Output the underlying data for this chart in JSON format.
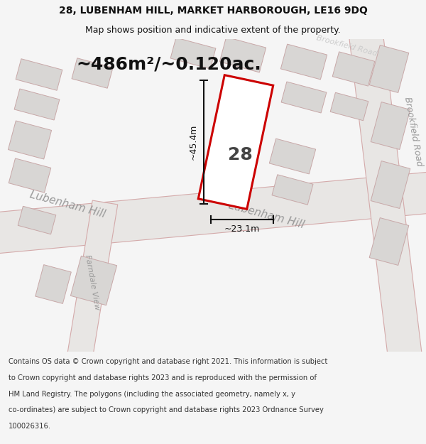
{
  "title_line1": "28, LUBENHAM HILL, MARKET HARBOROUGH, LE16 9DQ",
  "title_line2": "Map shows position and indicative extent of the property.",
  "area_text": "~486m²/~0.120ac.",
  "dim_vertical": "~45.4m",
  "dim_horizontal": "~23.1m",
  "property_number": "28",
  "footer_lines": [
    "Contains OS data © Crown copyright and database right 2021. This information is subject",
    "to Crown copyright and database rights 2023 and is reproduced with the permission of",
    "HM Land Registry. The polygons (including the associated geometry, namely x, y",
    "co-ordinates) are subject to Crown copyright and database rights 2023 Ordnance Survey",
    "100026316."
  ],
  "bg_color": "#f5f5f5",
  "map_bg": "#f0efee",
  "road_fill": "#e8e6e4",
  "road_stroke": "#d4aaaa",
  "property_outline_color": "#cc0000",
  "property_fill": "#ffffff",
  "dim_color": "#111111",
  "title_color": "#111111",
  "street_label_color": "#999999",
  "bld_color": "#d8d6d4",
  "bld_edge": "#c8a8a8"
}
